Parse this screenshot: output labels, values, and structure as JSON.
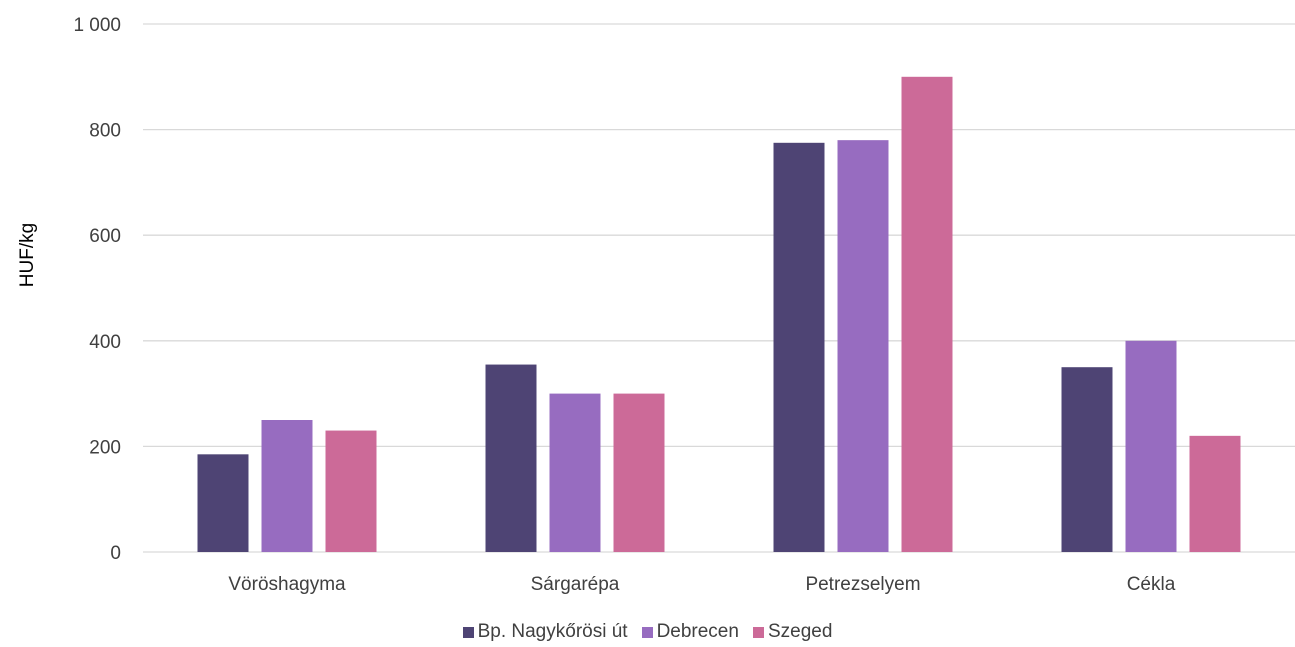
{
  "chart_data": {
    "type": "bar",
    "categories": [
      "Vöröshagyma",
      "Sárgarépa",
      "Petrezselyem",
      "Cékla"
    ],
    "series": [
      {
        "name": "Bp. Nagykőrösi út",
        "values": [
          185,
          355,
          775,
          350
        ],
        "color": "#4e4474"
      },
      {
        "name": "Debrecen",
        "values": [
          250,
          300,
          780,
          400
        ],
        "color": "#976cc0"
      },
      {
        "name": "Szeged",
        "values": [
          230,
          300,
          900,
          220
        ],
        "color": "#cc6a98"
      }
    ],
    "yticks": [
      "0",
      "200",
      "400",
      "600",
      "800",
      "1 000"
    ],
    "ytick_values": [
      0,
      200,
      400,
      600,
      800,
      1000
    ],
    "ylabel": "HUF/kg",
    "xlabel": "",
    "ylim": [
      0,
      1000
    ],
    "grid": true,
    "legend_position": "bottom"
  }
}
